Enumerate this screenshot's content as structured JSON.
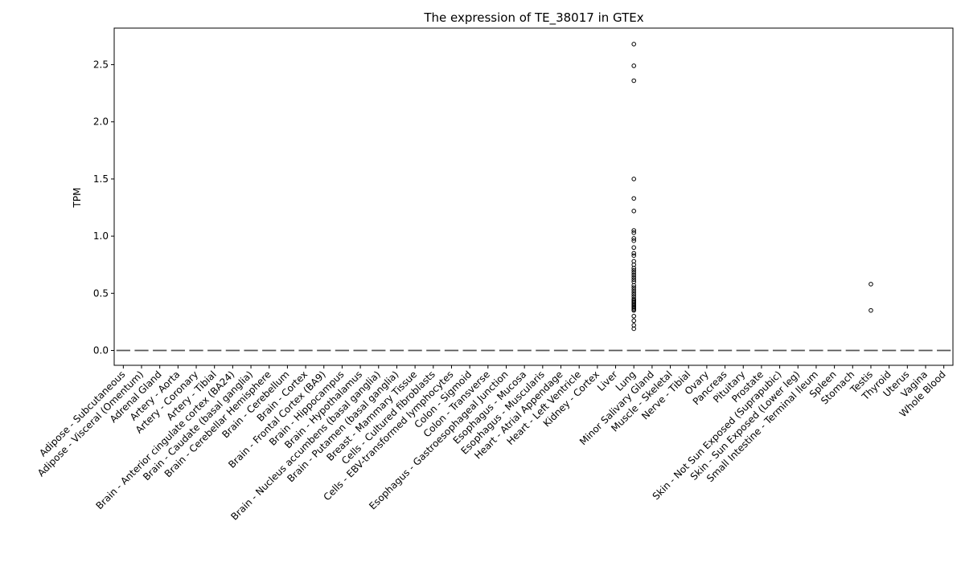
{
  "chart_data": {
    "type": "box",
    "title": "The expression of TE_38017 in GTEx",
    "xlabel": "",
    "ylabel": "TPM",
    "ylim": [
      -0.13,
      2.82
    ],
    "yticks": [
      "0.0",
      "0.5",
      "1.0",
      "1.5",
      "2.0",
      "2.5"
    ],
    "grid": false,
    "categories": [
      "Adipose - Subcutaneous",
      "Adipose - Visceral (Omentum)",
      "Adrenal Gland",
      "Artery - Aorta",
      "Artery - Coronary",
      "Artery - Tibial",
      "Brain - Anterior cingulate cortex (BA24)",
      "Brain - Caudate (basal ganglia)",
      "Brain - Cerebellar Hemisphere",
      "Brain - Cerebellum",
      "Brain - Cortex",
      "Brain - Frontal Cortex (BA9)",
      "Brain - Hippocampus",
      "Brain - Hypothalamus",
      "Brain - Nucleus accumbens (basal ganglia)",
      "Brain - Putamen (basal ganglia)",
      "Breast - Mammary Tissue",
      "Cells - Cultured fibroblasts",
      "Cells - EBV-transformed lymphocytes",
      "Colon - Sigmoid",
      "Colon - Transverse",
      "Esophagus - Gastroesophageal Junction",
      "Esophagus - Mucosa",
      "Esophagus - Muscularis",
      "Heart - Atrial Appendage",
      "Heart - Left Ventricle",
      "Kidney - Cortex",
      "Liver",
      "Lung",
      "Minor Salivary Gland",
      "Muscle - Skeletal",
      "Nerve - Tibial",
      "Ovary",
      "Pancreas",
      "Pituitary",
      "Prostate",
      "Skin - Not Sun Exposed (Suprapubic)",
      "Skin - Sun Exposed (Lower leg)",
      "Small Intestine - Terminal Ileum",
      "Spleen",
      "Stomach",
      "Testis",
      "Thyroid",
      "Uterus",
      "Vagina",
      "Whole Blood"
    ],
    "median_values": [
      0,
      0,
      0,
      0,
      0,
      0,
      0,
      0,
      0,
      0,
      0,
      0,
      0,
      0,
      0,
      0,
      0,
      0,
      0,
      0,
      0,
      0,
      0,
      0,
      0,
      0,
      0,
      0,
      0,
      0,
      0,
      0,
      0,
      0,
      0,
      0,
      0,
      0,
      0,
      0,
      0,
      0,
      0,
      0,
      0,
      0
    ],
    "outliers": [
      {
        "category": "Lung",
        "values": [
          2.68,
          2.49,
          2.36,
          1.5,
          1.33,
          1.22,
          1.05,
          1.03,
          0.98,
          0.96,
          0.9,
          0.85,
          0.83,
          0.78,
          0.75,
          0.72,
          0.7,
          0.68,
          0.66,
          0.64,
          0.62,
          0.6,
          0.57,
          0.55,
          0.53,
          0.51,
          0.49,
          0.47,
          0.45,
          0.44,
          0.43,
          0.42,
          0.41,
          0.4,
          0.39,
          0.38,
          0.37,
          0.36,
          0.35,
          0.3,
          0.26,
          0.22,
          0.19
        ]
      },
      {
        "category": "Testis",
        "values": [
          0.58,
          0.35
        ]
      }
    ],
    "colors": {
      "median_line": "#555555",
      "outlier_edge": "#000000",
      "axis": "#000000"
    }
  }
}
